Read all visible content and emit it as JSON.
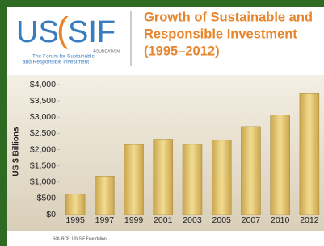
{
  "logo": {
    "us": "US",
    "paren": "(",
    "sif": "SIF",
    "foundation": "FOUNDATION",
    "tagline_1": "The Forum for Sustainable",
    "tagline_2": "and Responsible Investment"
  },
  "chart_data": {
    "type": "bar",
    "title_lines": [
      "Growth of Sustainable and",
      "Responsible Investment",
      "(1995–2012)"
    ],
    "y_label": "US $ Billions",
    "source": "SOURCE: US SIF Foundation",
    "categories": [
      "1995",
      "1997",
      "1999",
      "2001",
      "2003",
      "2005",
      "2007",
      "2010",
      "2012"
    ],
    "values": [
      639,
      1185,
      2159,
      2323,
      2164,
      2290,
      2711,
      3069,
      3744
    ],
    "color": "#c9a54c",
    "ylim": [
      0,
      4000
    ],
    "yticks": [
      {
        "value": 0,
        "label": "$0"
      },
      {
        "value": 500,
        "label": "$500"
      },
      {
        "value": 1000,
        "label": "$1,000"
      },
      {
        "value": 1500,
        "label": "$1,500"
      },
      {
        "value": 2000,
        "label": "$2,000"
      },
      {
        "value": 2500,
        "label": "$2,500"
      },
      {
        "value": 3000,
        "label": "$3,000"
      },
      {
        "value": 3500,
        "label": "$3,500"
      },
      {
        "value": 4000,
        "label": "$4,000"
      }
    ]
  }
}
